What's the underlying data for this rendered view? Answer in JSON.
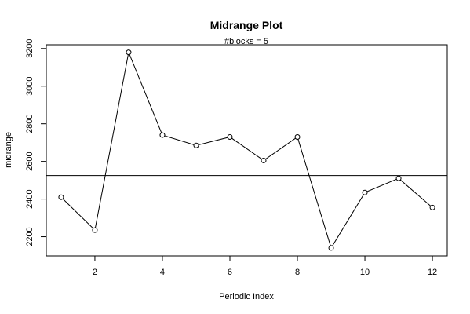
{
  "chart_data": {
    "type": "line",
    "title": "Midrange Plot",
    "subtitle": "#blocks =  5",
    "xlabel": "Periodic Index",
    "ylabel": "midrange",
    "x": [
      1,
      2,
      3,
      4,
      5,
      6,
      7,
      8,
      9,
      10,
      11,
      12
    ],
    "values": [
      2410,
      2235,
      3180,
      2740,
      2685,
      2730,
      2605,
      2730,
      2140,
      2435,
      2510,
      2355
    ],
    "reference_line": 2525,
    "xlim": [
      0.56,
      12.44
    ],
    "ylim": [
      2098,
      3220
    ],
    "x_ticks": [
      2,
      4,
      6,
      8,
      10,
      12
    ],
    "y_ticks": [
      2200,
      2400,
      2600,
      2800,
      3000,
      3200
    ],
    "marker": "open-circle",
    "grid": false,
    "legend": "none"
  }
}
